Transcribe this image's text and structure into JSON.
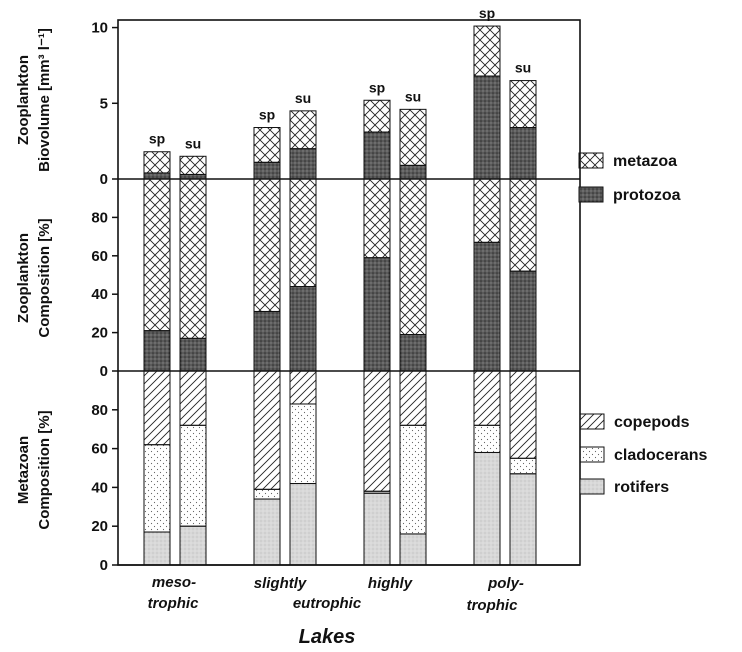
{
  "colors": {
    "protozoa": "#555555",
    "metazoa": "#ffffff",
    "rotifers": "#d4d4d4",
    "cladocerans": "#ffffff",
    "copepods": "#ffffff",
    "axis": "#111111"
  },
  "chart_data": [
    {
      "type": "bar",
      "stacked": true,
      "panel": "top",
      "ylabel_lines": [
        "Zooplankton",
        "Biovolume  [mm³ l⁻¹]"
      ],
      "ylim": [
        0,
        10.5
      ],
      "yticks": [
        "0",
        "5",
        "10"
      ],
      "categories": [
        "meso-trophic sp",
        "meso-trophic su",
        "slightly eutrophic sp",
        "slightly eutrophic su",
        "highly eutrophic sp",
        "highly eutrophic su",
        "poly-trophic sp",
        "poly-trophic su"
      ],
      "bar_labels": [
        "sp",
        "su",
        "sp",
        "su",
        "sp",
        "su",
        "sp",
        "su"
      ],
      "series": [
        {
          "name": "protozoa",
          "values": [
            0.4,
            0.3,
            1.1,
            2.0,
            3.1,
            0.9,
            6.8,
            3.4
          ]
        },
        {
          "name": "metazoa",
          "values": [
            1.4,
            1.2,
            2.3,
            2.5,
            2.1,
            3.7,
            3.3,
            3.1
          ]
        }
      ],
      "legend": [
        "metazoa",
        "protozoa"
      ],
      "legend_position": "right"
    },
    {
      "type": "bar",
      "stacked": true,
      "panel": "middle",
      "ylabel_lines": [
        "Zooplankton",
        "Composition  [%]"
      ],
      "ylim": [
        0,
        100
      ],
      "yticks": [
        "0",
        "20",
        "40",
        "60",
        "80"
      ],
      "categories": [
        "meso-trophic sp",
        "meso-trophic su",
        "slightly eutrophic sp",
        "slightly eutrophic su",
        "highly eutrophic sp",
        "highly eutrophic su",
        "poly-trophic sp",
        "poly-trophic su"
      ],
      "series": [
        {
          "name": "protozoa",
          "values": [
            21,
            17,
            31,
            44,
            59,
            19,
            67,
            52
          ]
        },
        {
          "name": "metazoa",
          "values": [
            79,
            83,
            69,
            56,
            41,
            81,
            33,
            48
          ]
        }
      ]
    },
    {
      "type": "bar",
      "stacked": true,
      "panel": "bottom",
      "ylabel_lines": [
        "Metazoan",
        "Composition  [%]"
      ],
      "ylim": [
        0,
        100
      ],
      "yticks": [
        "0",
        "20",
        "40",
        "60",
        "80"
      ],
      "categories": [
        "meso-trophic sp",
        "meso-trophic su",
        "slightly eutrophic sp",
        "slightly eutrophic su",
        "highly eutrophic sp",
        "highly eutrophic su",
        "poly-trophic sp",
        "poly-trophic su"
      ],
      "series": [
        {
          "name": "rotifers",
          "values": [
            17,
            20,
            34,
            42,
            37,
            16,
            58,
            47
          ]
        },
        {
          "name": "cladocerans",
          "values": [
            45,
            52,
            5,
            41,
            1,
            56,
            14,
            8
          ]
        },
        {
          "name": "copepods",
          "values": [
            38,
            28,
            61,
            17,
            62,
            28,
            28,
            45
          ]
        }
      ],
      "legend": [
        "copepods",
        "cladocerans",
        "rotifers"
      ],
      "legend_position": "right"
    }
  ],
  "x_groups": [
    {
      "lines": [
        "meso-",
        "trophic"
      ]
    },
    {
      "lines": [
        "slightly"
      ]
    },
    {
      "lines": [
        "highly"
      ]
    },
    {
      "lines": [
        "poly-",
        "trophic"
      ]
    }
  ],
  "x_shared_label": "eutrophic",
  "xlabel": "Lakes"
}
